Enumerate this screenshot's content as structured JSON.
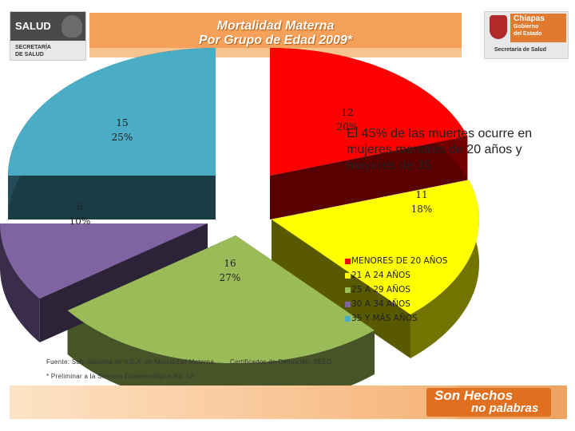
{
  "header": {
    "left_logo": {
      "brand": "SALUD",
      "sub_line1": "SECRETARÍA",
      "sub_line2": "DE SALUD",
      "icon": "mexico-eagle-icon"
    },
    "title_line1": "Mortalidad  Materna",
    "title_line2": "Por Grupo de Edad 2009*",
    "right_logo": {
      "line1": "Chiapas",
      "line2": "Gobierno",
      "line3": "del Estado",
      "sub": "Secretaría de Salud",
      "icon": "chiapas-shield-icon"
    }
  },
  "annotation": "El 45% de las muertes ocurre en mujeres menores de 20 años y mayores de 35",
  "chart_data": {
    "type": "pie",
    "slices": [
      {
        "label": "MENORES DE 20 AÑOS",
        "value": 12,
        "percent": "20%",
        "color": "#ff0000"
      },
      {
        "label": "21 A 24 AÑOS",
        "value": 11,
        "percent": "18%",
        "color": "#ffff00"
      },
      {
        "label": "25 A 29 AÑOS",
        "value": 16,
        "percent": "27%",
        "color": "#9bbb59"
      },
      {
        "label": "30 A 34 AÑOS",
        "value": 6,
        "percent": "10%",
        "color": "#8064a2"
      },
      {
        "label": "35 Y MÁS AÑOS",
        "value": 15,
        "percent": "25%",
        "color": "#4bacc6"
      }
    ],
    "legend_position": "right",
    "three_d": true
  },
  "footer": {
    "source": "Fuente:  Sub. Sistema de V.E.A. de Mortalidad Materna.",
    "source2": "Certificados de Defunción.  SEED.",
    "footnote": "* Preliminar a la Semana Epidemiológica  No.  52",
    "slogan_line1": "Son Hechos",
    "slogan_line2": "no palabras"
  }
}
